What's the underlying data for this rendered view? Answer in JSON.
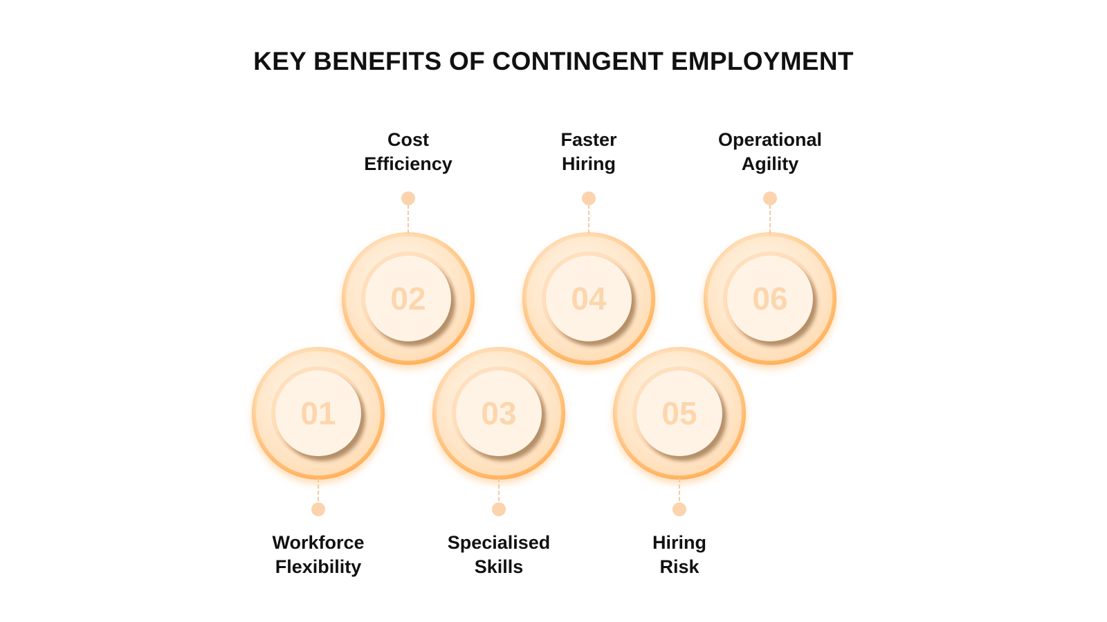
{
  "title": "KEY BENEFITS OF CONTINGENT EMPLOYMENT",
  "colors": {
    "accent": "#ffa844",
    "number": "#fcd6ad",
    "connector": "#fbd3ad",
    "text": "#111111"
  },
  "benefits": [
    {
      "number": "01",
      "line1": "Workforce",
      "line2": "Flexibility"
    },
    {
      "number": "02",
      "line1": "Cost",
      "line2": "Efficiency"
    },
    {
      "number": "03",
      "line1": "Specialised",
      "line2": "Skills"
    },
    {
      "number": "04",
      "line1": "Faster",
      "line2": "Hiring"
    },
    {
      "number": "05",
      "line1": "Hiring",
      "line2": "Risk"
    },
    {
      "number": "06",
      "line1": "Operational",
      "line2": "Agility"
    }
  ]
}
